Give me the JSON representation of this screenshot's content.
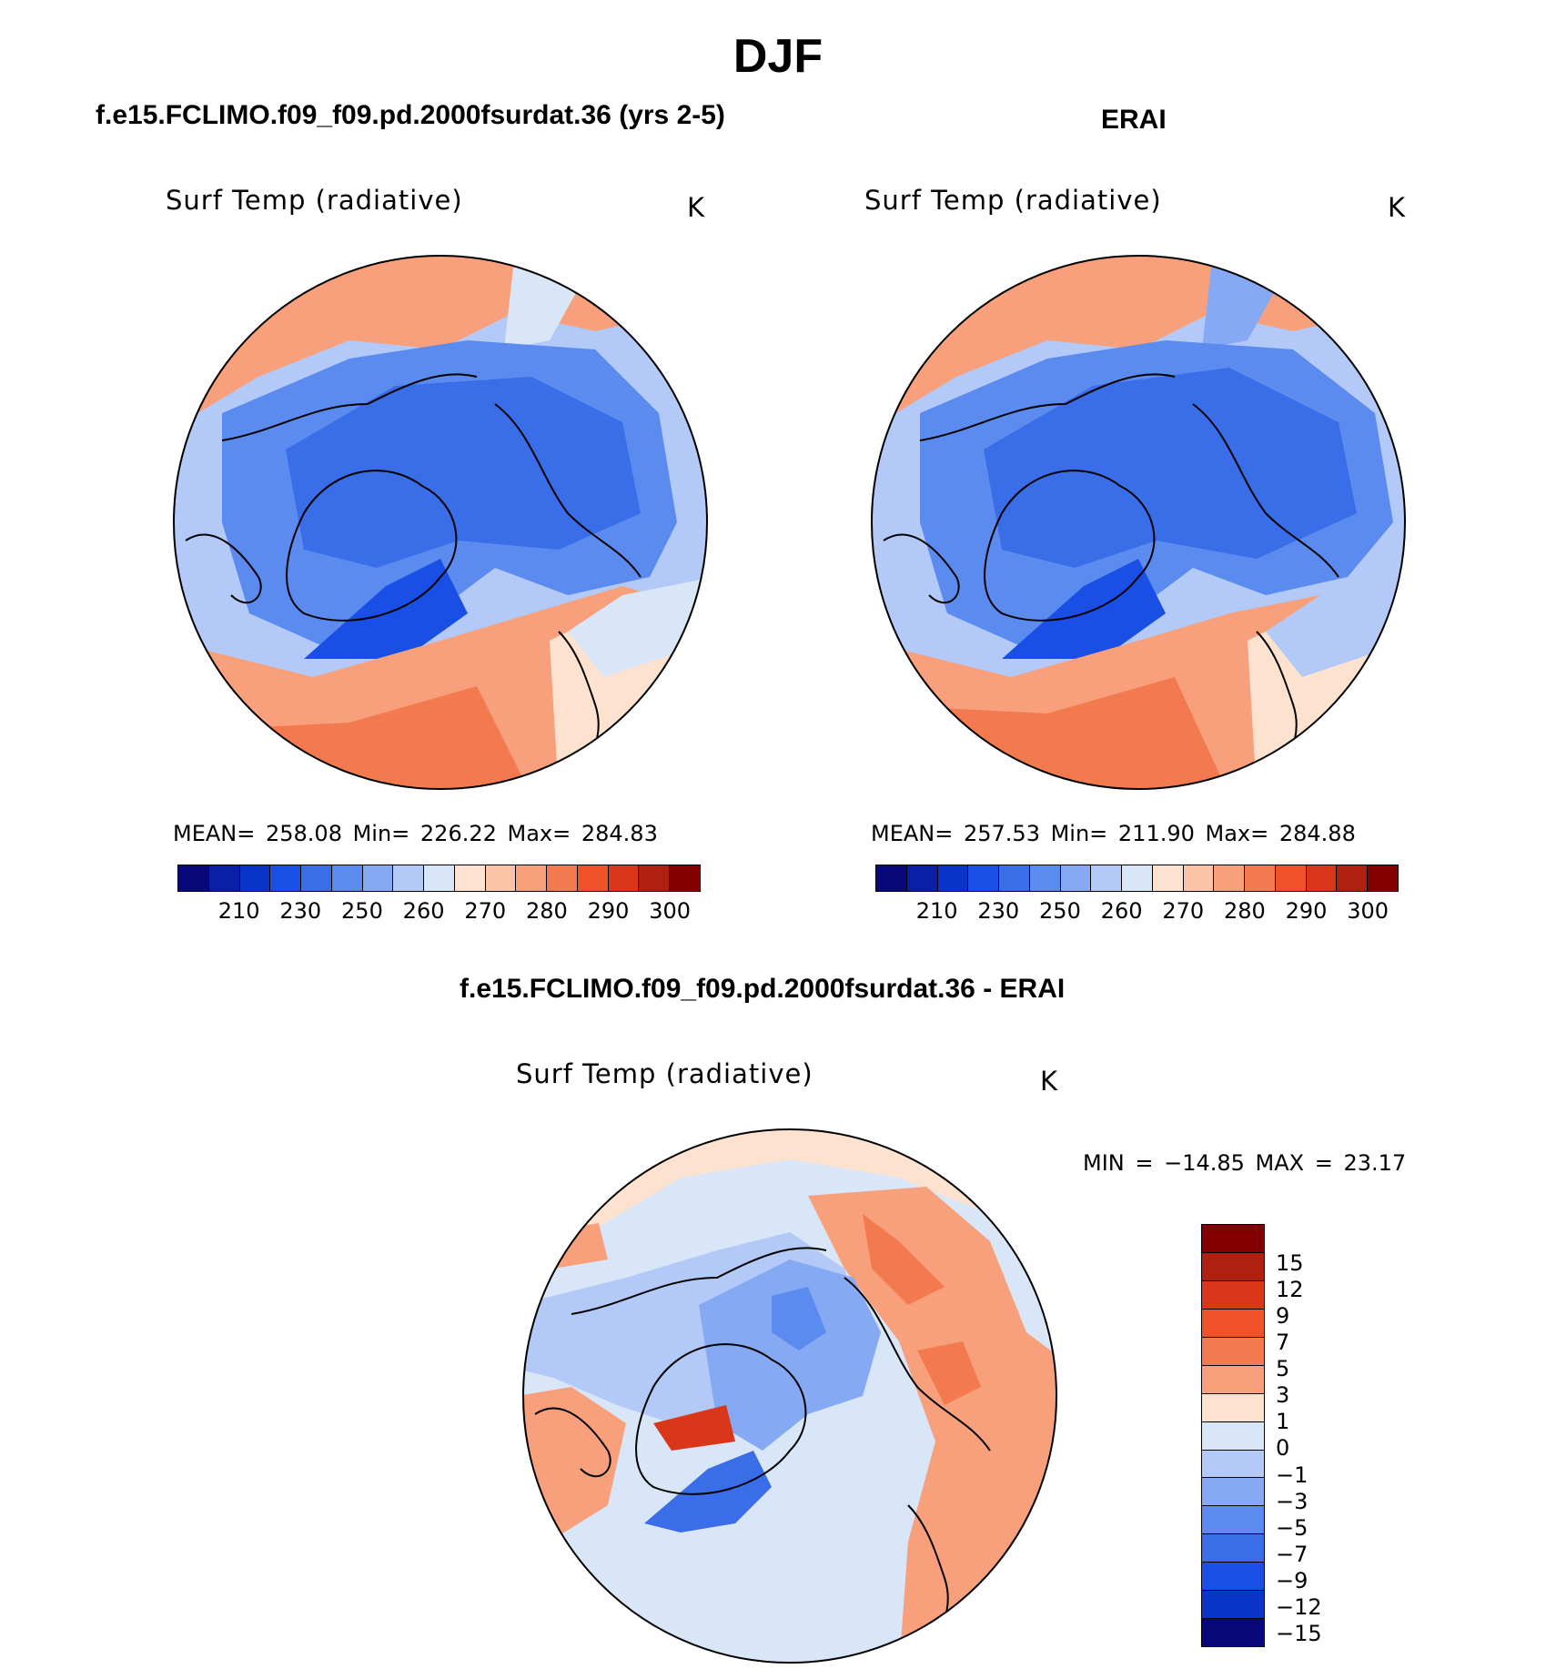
{
  "title": "DJF",
  "panels": {
    "model": {
      "title": "f.e15.FCLIMO.f09_f09.pd.2000fsurdat.36 (yrs 2-5)",
      "variable": "Surf Temp (radiative)",
      "units": "K",
      "stats": "MEAN= 258.08   Min= 226.22   Max= 284.83"
    },
    "obs": {
      "title": "ERAI",
      "variable": "Surf Temp (radiative)",
      "units": "K",
      "stats": "MEAN= 257.53   Min= 211.90   Max= 284.88"
    },
    "diff": {
      "title": "f.e15.FCLIMO.f09_f09.pd.2000fsurdat.36 - ERAI",
      "variable": "Surf Temp (radiative)",
      "units": "K",
      "minmax": "MIN = −14.85 MAX =   23.17"
    }
  },
  "abs_colorbar": {
    "colors": [
      "#08087a",
      "#0a1fa8",
      "#0b35c9",
      "#1a4fe6",
      "#3a6ee8",
      "#5b8bef",
      "#86a9f3",
      "#b3c9f7",
      "#d8e6f8",
      "#fde3cf",
      "#fbc4a6",
      "#f8a07c",
      "#f37a4f",
      "#ef5229",
      "#d9361a",
      "#b02010",
      "#820000"
    ],
    "ticks": [
      "210",
      "230",
      "250",
      "260",
      "270",
      "280",
      "290",
      "300"
    ]
  },
  "diff_colorbar": {
    "colors": [
      "#820000",
      "#b02010",
      "#d9361a",
      "#ef5229",
      "#f37a4f",
      "#f8a07c",
      "#fde3cf",
      "#d8e6f8",
      "#b3c9f7",
      "#86a9f3",
      "#5b8bef",
      "#3a6ee8",
      "#1a4fe6",
      "#0b35c9",
      "#08087a"
    ],
    "ticks": [
      "15",
      "12",
      "9",
      "7",
      "5",
      "3",
      "1",
      "0",
      "−1",
      "−3",
      "−5",
      "−7",
      "−9",
      "−12",
      "−15"
    ]
  }
}
